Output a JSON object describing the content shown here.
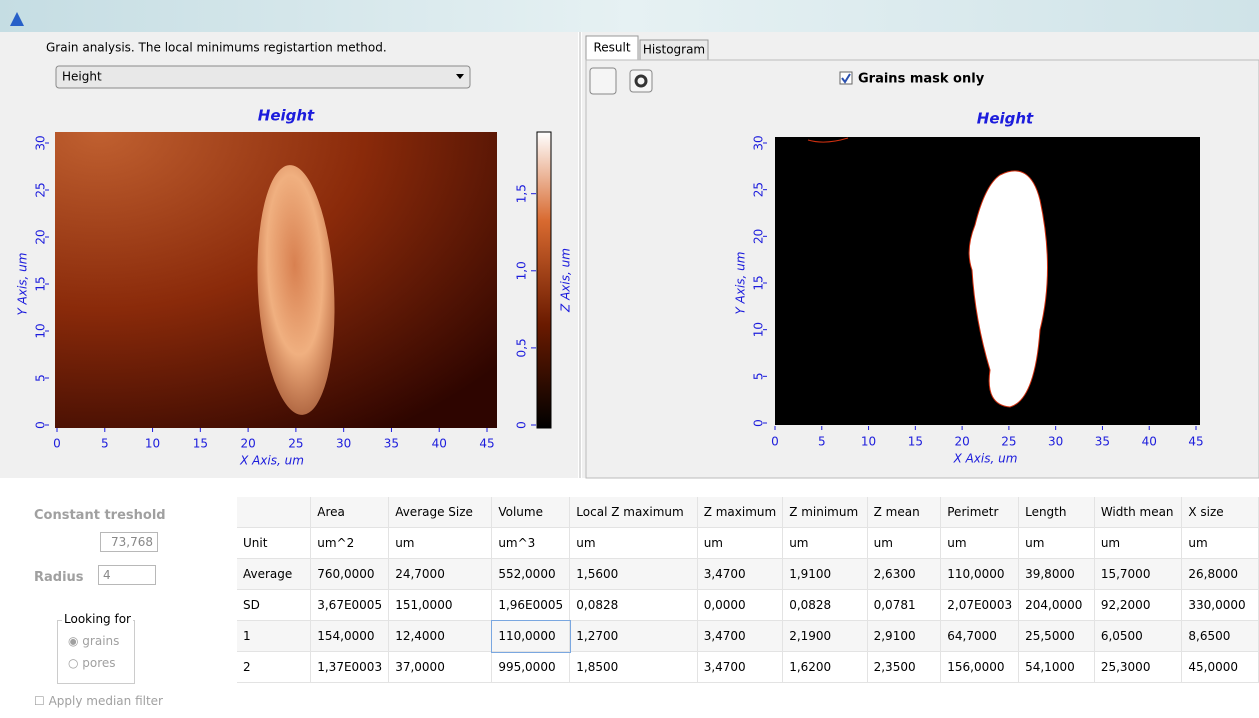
{
  "header": {
    "method_label": "Grain analysis. The local minimums registartion method."
  },
  "dropdown": {
    "value": "Height"
  },
  "left_plot": {
    "title": "Height",
    "x_label": "X Axis, um",
    "y_label": "Y Axis, um",
    "z_label": "Z Axis, um",
    "xlim": [
      0,
      45
    ],
    "xticks": [
      0,
      5,
      10,
      15,
      20,
      25,
      30,
      35,
      40,
      45
    ],
    "ylim": [
      0,
      30
    ],
    "yticks": [
      0,
      5,
      10,
      15,
      20,
      25,
      30
    ],
    "zlim": [
      0,
      1.9
    ],
    "zticks": [
      0,
      {
        "value": 0.5,
        "label": "0,5"
      },
      {
        "value": 1,
        "label": "1,0"
      },
      {
        "value": 1.5,
        "label": "1,5"
      }
    ]
  },
  "tabs": [
    "Result",
    "Histogram"
  ],
  "checkbox": {
    "label": "Grains mask only"
  },
  "right_plot": {
    "title": "Height",
    "x_label": "X Axis, um",
    "y_label": "Y Axis, um",
    "xlim": [
      0,
      45
    ],
    "xticks": [
      0,
      5,
      10,
      15,
      20,
      25,
      30,
      35,
      40,
      45
    ],
    "ylim": [
      0,
      30
    ],
    "yticks": [
      0,
      5,
      10,
      15,
      20,
      25,
      30
    ]
  },
  "controls": {
    "threshold_label": "Constant treshold",
    "threshold_value": "73,768",
    "radius_label": "Radius",
    "radius_value": "4",
    "looking_for": "Looking for",
    "grains": "grains",
    "pores": "pores",
    "median_filter": "Apply median filter"
  },
  "table": {
    "columns": [
      "Area",
      "Average Size",
      "Volume",
      "Local Z maximum",
      "Z maximum",
      "Z minimum",
      "Z mean",
      "Perimetr",
      "Length",
      "Width mean",
      "X size"
    ],
    "rows": [
      {
        "label": "Unit",
        "cells": [
          "um^2",
          "um",
          "um^3",
          "um",
          "um",
          "um",
          "um",
          "um",
          "um",
          "um",
          "um"
        ]
      },
      {
        "label": "Average",
        "cells": [
          "760,0000",
          "24,7000",
          "552,0000",
          "1,5600",
          "3,4700",
          "1,9100",
          "2,6300",
          "110,0000",
          "39,8000",
          "15,7000",
          "26,8000"
        ]
      },
      {
        "label": "SD",
        "cells": [
          "3,67E0005",
          "151,0000",
          "1,96E0005",
          "0,0828",
          "0,0000",
          "0,0828",
          "0,0781",
          "2,07E0003",
          "204,0000",
          "92,2000",
          "330,0000"
        ]
      },
      {
        "label": "1",
        "cells": [
          "154,0000",
          "12,4000",
          "110,0000",
          "1,2700",
          "3,4700",
          "2,1900",
          "2,9100",
          "64,7000",
          "25,5000",
          "6,0500",
          "8,6500"
        ]
      },
      {
        "label": "2",
        "cells": [
          "1,37E0003",
          "37,0000",
          "995,0000",
          "1,8500",
          "3,4700",
          "1,6200",
          "2,3500",
          "156,0000",
          "54,1000",
          "25,3000",
          "45,0000"
        ]
      }
    ]
  }
}
